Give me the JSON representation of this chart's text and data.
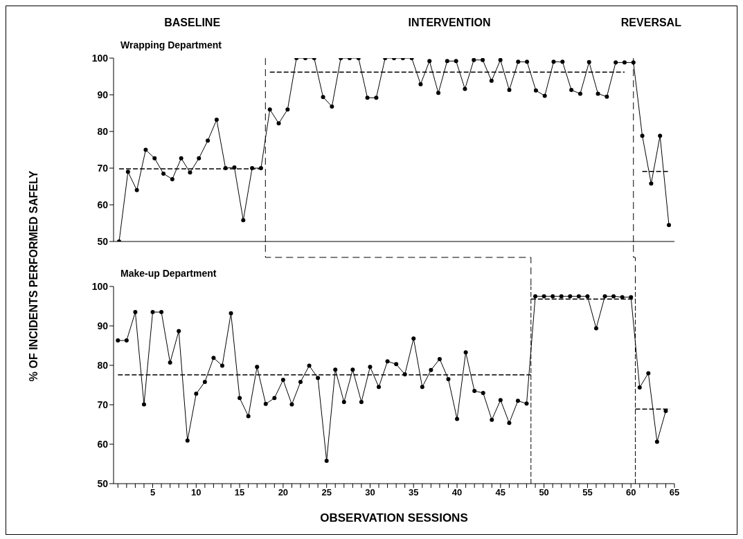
{
  "chart_data": [
    {
      "type": "line",
      "title": "Wrapping Department",
      "ylabel": "% OF INCIDENTS PERFORMED SAFELY",
      "annotations": [
        "BASELINE",
        "INTERVENTION",
        "REVERSAL"
      ],
      "categories": [
        null,
        null,
        null,
        null,
        null,
        null,
        null,
        null,
        null,
        null,
        null,
        null,
        null,
        null,
        null,
        null,
        null,
        null,
        null,
        null,
        null,
        null,
        null,
        null,
        null,
        null,
        null,
        null,
        null,
        null,
        null,
        null,
        null,
        null,
        null,
        null,
        null,
        null,
        null,
        null,
        null,
        null,
        null,
        null,
        null,
        null,
        null,
        null,
        null,
        null,
        null,
        null,
        null,
        null,
        null,
        null,
        null,
        null,
        null,
        null,
        null,
        null,
        null
      ],
      "ylim": [
        50,
        100
      ],
      "yticks": [
        50,
        60,
        70,
        80,
        90,
        100
      ],
      "tick_labels": "y",
      "marker": "circle",
      "line_style": "solid",
      "series": [
        {
          "color": "#000000",
          "values": [
            50,
            69,
            64,
            75,
            72.7,
            68.5,
            67,
            72.7,
            68.8,
            72.7,
            77.5,
            83.2,
            70,
            70.2,
            55.8,
            70,
            70,
            86,
            82.2,
            86,
            100,
            100,
            100,
            89.4,
            86.8,
            100,
            100,
            100,
            89.2,
            89.2,
            100,
            100,
            100,
            100,
            92.9,
            99.2,
            90.5,
            99.2,
            99.2,
            91.6,
            99.5,
            99.5,
            93.8,
            99.5,
            91.3,
            99,
            99,
            91.2,
            89.7,
            99,
            99,
            91.3,
            90.3,
            98.9,
            90.3,
            89.5,
            98.8,
            98.8,
            98.8,
            78.8,
            65.8,
            78.8,
            54.5
          ]
        },
        {
          "type": "line",
          "color": "#000000",
          "line_style": "dashed",
          "marker": "none",
          "values": [
            69.8,
            69.8,
            69.8,
            69.8,
            69.8,
            69.8,
            69.8,
            69.8,
            69.8,
            69.8,
            69.8,
            69.8,
            69.8,
            69.8,
            69.8,
            69.8,
            69.8,
            null,
            null,
            null,
            null,
            null,
            null,
            null,
            null,
            null,
            null,
            null,
            null,
            null,
            null,
            null,
            null,
            null,
            null,
            null,
            null,
            null,
            null,
            null,
            null,
            null,
            null,
            null,
            null,
            null,
            null,
            null,
            null,
            null,
            null,
            null,
            null,
            null,
            null,
            null,
            null,
            null,
            null,
            null,
            null,
            null,
            null
          ]
        },
        {
          "type": "line",
          "color": "#000000",
          "line_style": "dashed",
          "marker": "none",
          "values": [
            null,
            null,
            null,
            null,
            null,
            null,
            null,
            null,
            null,
            null,
            null,
            null,
            null,
            null,
            null,
            null,
            null,
            96.2,
            96.2,
            96.2,
            96.2,
            96.2,
            96.2,
            96.2,
            96.2,
            96.2,
            96.2,
            96.2,
            96.2,
            96.2,
            96.2,
            96.2,
            96.2,
            96.2,
            96.2,
            96.2,
            96.2,
            96.2,
            96.2,
            96.2,
            96.2,
            96.2,
            96.2,
            96.2,
            96.2,
            96.2,
            96.2,
            96.2,
            96.2,
            96.2,
            96.2,
            96.2,
            96.2,
            96.2,
            96.2,
            96.2,
            96.2,
            96.2,
            null,
            null,
            null,
            null,
            null
          ]
        },
        {
          "type": "line",
          "color": "#000000",
          "line_style": "dashed",
          "marker": "none",
          "values": [
            null,
            null,
            null,
            null,
            null,
            null,
            null,
            null,
            null,
            null,
            null,
            null,
            null,
            null,
            null,
            null,
            null,
            null,
            null,
            null,
            null,
            null,
            null,
            null,
            null,
            null,
            null,
            null,
            null,
            null,
            null,
            null,
            null,
            null,
            null,
            null,
            null,
            null,
            null,
            null,
            null,
            null,
            null,
            null,
            null,
            null,
            null,
            null,
            null,
            null,
            null,
            null,
            null,
            null,
            null,
            null,
            null,
            null,
            null,
            69.1,
            69.1,
            69.1,
            69.1
          ]
        }
      ]
    },
    {
      "type": "line",
      "title": "Make-up Department",
      "xlabel": "OBSERVATION SESSIONS",
      "xlim": [
        0.5,
        65
      ],
      "ylim": [
        50,
        100
      ],
      "yticks": [
        50,
        60,
        70,
        80,
        90,
        100
      ],
      "xticks": [
        {
          "value": 1,
          "label": null
        },
        {
          "value": 2,
          "label": null
        },
        {
          "value": 3,
          "label": null
        },
        {
          "value": 4,
          "label": null
        },
        5,
        {
          "value": 6,
          "label": null
        },
        {
          "value": 7,
          "label": null
        },
        {
          "value": 8,
          "label": null
        },
        {
          "value": 9,
          "label": null
        },
        10,
        {
          "value": 11,
          "label": null
        },
        {
          "value": 12,
          "label": null
        },
        {
          "value": 13,
          "label": null
        },
        {
          "value": 14,
          "label": null
        },
        15,
        {
          "value": 16,
          "label": null
        },
        {
          "value": 17,
          "label": null
        },
        {
          "value": 18,
          "label": null
        },
        {
          "value": 19,
          "label": null
        },
        20,
        {
          "value": 21,
          "label": null
        },
        {
          "value": 22,
          "label": null
        },
        {
          "value": 23,
          "label": null
        },
        {
          "value": 24,
          "label": null
        },
        25,
        {
          "value": 26,
          "label": null
        },
        {
          "value": 27,
          "label": null
        },
        {
          "value": 28,
          "label": null
        },
        {
          "value": 29,
          "label": null
        },
        30,
        {
          "value": 31,
          "label": null
        },
        {
          "value": 32,
          "label": null
        },
        {
          "value": 33,
          "label": null
        },
        {
          "value": 34,
          "label": null
        },
        35,
        {
          "value": 36,
          "label": null
        },
        {
          "value": 37,
          "label": null
        },
        {
          "value": 38,
          "label": null
        },
        {
          "value": 39,
          "label": null
        },
        40,
        {
          "value": 41,
          "label": null
        },
        {
          "value": 42,
          "label": null
        },
        {
          "value": 43,
          "label": null
        },
        {
          "value": 44,
          "label": null
        },
        45,
        {
          "value": 46,
          "label": null
        },
        {
          "value": 47,
          "label": null
        },
        {
          "value": 48,
          "label": null
        },
        {
          "value": 49,
          "label": null
        },
        50,
        {
          "value": 51,
          "label": null
        },
        {
          "value": 52,
          "label": null
        },
        {
          "value": 53,
          "label": null
        },
        {
          "value": 54,
          "label": null
        },
        55,
        {
          "value": 56,
          "label": null
        },
        {
          "value": 57,
          "label": null
        },
        {
          "value": 58,
          "label": null
        },
        {
          "value": 59,
          "label": null
        },
        60,
        {
          "value": 61,
          "label": null
        },
        {
          "value": 62,
          "label": null
        },
        {
          "value": 63,
          "label": null
        },
        {
          "value": 64,
          "label": null
        },
        65
      ],
      "marker": "circle",
      "line_style": "solid",
      "series": [
        {
          "color": "#000000",
          "x": [
            1,
            2,
            3,
            4,
            5,
            6,
            7,
            8,
            9,
            10,
            11,
            12,
            13,
            14,
            15,
            16,
            17,
            18,
            19,
            20,
            21,
            22,
            23,
            24,
            25,
            26,
            27,
            28,
            29,
            30,
            31,
            32,
            33,
            34,
            35,
            36,
            37,
            38,
            39,
            40,
            41,
            42,
            43,
            44,
            45,
            46,
            47,
            48,
            49,
            50,
            51,
            52,
            53,
            54,
            55,
            56,
            57,
            58,
            59,
            60,
            61,
            62,
            63,
            64
          ],
          "values": [
            86.3,
            86.3,
            93.5,
            70.1,
            93.5,
            93.5,
            80.7,
            88.7,
            60.9,
            72.8,
            75.8,
            81.9,
            79.9,
            93.2,
            71.7,
            67.1,
            79.6,
            70.2,
            71.7,
            76.3,
            70.1,
            75.8,
            79.9,
            76.8,
            55.8,
            78.9,
            70.7,
            78.9,
            70.7,
            79.6,
            74.5,
            81,
            80.3,
            77.7,
            86.8,
            74.5,
            78.8,
            81.6,
            76.5,
            66.4,
            83.3,
            73.5,
            73,
            66.2,
            71.2,
            65.4,
            71,
            70.3,
            97.5,
            97.5,
            97.5,
            97.5,
            97.5,
            97.5,
            97.5,
            89.4,
            97.5,
            97.5,
            97.3,
            97.3,
            74.4,
            78,
            60.6,
            68.4
          ]
        },
        {
          "type": "line",
          "color": "#000000",
          "line_style": "dashed",
          "marker": "none",
          "x": [
            1,
            48.5
          ],
          "values": [
            77.6,
            77.6
          ]
        },
        {
          "type": "line",
          "color": "#000000",
          "line_style": "dashed",
          "marker": "none",
          "x": [
            48.5,
            60.5
          ],
          "values": [
            96.8,
            96.8
          ]
        },
        {
          "type": "line",
          "color": "#000000",
          "line_style": "dashed",
          "marker": "none",
          "x": [
            60.5,
            64.5
          ],
          "values": [
            68.9,
            68.9
          ]
        }
      ],
      "ref_lines": [
        {
          "axis": "x",
          "value": 48.5,
          "color": "#000000",
          "line_style": "dashed"
        },
        {
          "axis": "x",
          "value": 60.5,
          "color": "#000000",
          "line_style": "dashed"
        }
      ]
    }
  ]
}
